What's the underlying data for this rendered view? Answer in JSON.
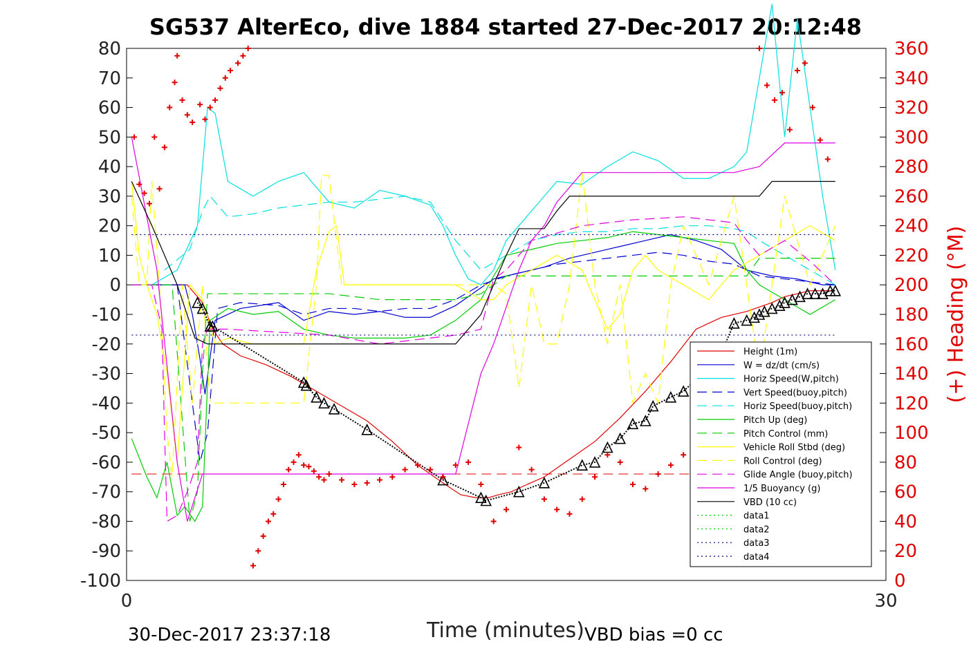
{
  "chart_data": {
    "type": "line",
    "title": "SG537 AlterEco, dive 1884 started 27-Dec-2017 20:12:48",
    "xlabel": "Time (minutes)",
    "ylabel_right": "(+) Heading (°M)",
    "xlim": [
      0,
      30
    ],
    "ylim": [
      -100,
      80
    ],
    "ylim_right": [
      0,
      360
    ],
    "x_ticks": [
      "0",
      "30"
    ],
    "y_ticks": [
      "80",
      "70",
      "60",
      "50",
      "40",
      "30",
      "20",
      "10",
      "0",
      "-10",
      "-20",
      "-30",
      "-40",
      "-50",
      "-60",
      "-70",
      "-80",
      "-90",
      "-100"
    ],
    "y_ticks_right": [
      "360",
      "340",
      "320",
      "300",
      "280",
      "260",
      "240",
      "220",
      "200",
      "180",
      "160",
      "140",
      "120",
      "100",
      "80",
      "60",
      "40",
      "20",
      "0"
    ],
    "grid": false,
    "legend_position": "lower-right",
    "footer_left": "30-Dec-2017 23:37:18",
    "footer_right": "VBD bias =0 cc",
    "colors": {
      "red": "#e00000",
      "blue": "#0000d0",
      "cyan": "#00e0e0",
      "green": "#00cc00",
      "yellow": "#ffff00",
      "magenta": "#e000e0",
      "black": "#000000",
      "navy": "#000080"
    },
    "series": [
      {
        "name": "Height (1m)",
        "color": "red",
        "dash": "solid",
        "x": [
          0.2,
          1.5,
          2.4,
          3.0,
          3.4,
          3.8,
          4.5,
          5.5,
          6.5,
          7.5,
          8.5,
          9.5,
          10.5,
          11.5,
          12.5,
          13.2,
          13.8,
          14.3,
          14.7,
          15.2,
          15.7,
          16.5,
          17.5,
          18.5,
          19.5,
          20.5,
          21.5,
          22.5,
          23.5,
          24.5,
          25.5,
          26.0,
          26.5,
          27.0,
          27.5,
          28.0
        ],
        "y": [
          0,
          0,
          0,
          -6,
          -15,
          -20,
          -24,
          -27,
          -31,
          -36,
          -41,
          -46,
          -53,
          -61,
          -67,
          -71,
          -72,
          -72,
          -71,
          -70,
          -68,
          -65,
          -59,
          -53,
          -45,
          -36,
          -26,
          -15,
          -11,
          -9,
          -6,
          -4,
          -3,
          -2,
          -2,
          -2
        ]
      },
      {
        "name": "W = dz/dt (cm/s)",
        "color": "blue",
        "dash": "solid",
        "x": [
          0.2,
          1.5,
          2.3,
          2.6,
          2.9,
          3.1,
          3.5,
          4.5,
          6.0,
          7.0,
          8.0,
          9.0,
          10.0,
          11.0,
          12.0,
          13.0,
          14.0,
          14.5,
          15.5,
          16.5,
          17.5,
          18.5,
          19.5,
          20.5,
          21.5,
          22.5,
          23.5,
          24.5,
          25.5,
          26.5,
          27.5,
          28.0
        ],
        "y": [
          0,
          0,
          0,
          -10,
          -25,
          -37,
          -12,
          -8,
          -6,
          -12,
          -9,
          -10,
          -9,
          -11,
          -11,
          -7,
          -1,
          2,
          4,
          6,
          9,
          11,
          13,
          15,
          17,
          15,
          12,
          5,
          3,
          2,
          0,
          0
        ]
      },
      {
        "name": "Horiz Speed(W,pitch)",
        "color": "cyan",
        "dash": "solid",
        "x": [
          0.2,
          1.0,
          2.0,
          2.8,
          3.2,
          3.5,
          4.0,
          5.0,
          6.0,
          7.0,
          8.0,
          9.0,
          10.0,
          11.0,
          12.0,
          12.5,
          13.0,
          13.5,
          14.0,
          14.5,
          15.0,
          16.0,
          17.0,
          18.0,
          19.0,
          20.0,
          21.0,
          22.0,
          23.0,
          24.0,
          24.5,
          25.0,
          25.5,
          26.0,
          26.5,
          27.0,
          27.5,
          28.0
        ],
        "y": [
          0,
          0,
          5,
          20,
          60,
          58,
          35,
          30,
          35,
          38,
          28,
          26,
          32,
          30,
          27,
          20,
          10,
          2,
          0,
          5,
          15,
          25,
          35,
          34,
          40,
          45,
          42,
          36,
          36,
          40,
          45,
          70,
          95,
          50,
          90,
          60,
          30,
          5
        ]
      },
      {
        "name": "Vert Speed(buoy,pitch)",
        "color": "blue",
        "dash": "dashed",
        "x": [
          0.2,
          1.5,
          2.0,
          2.6,
          2.9,
          3.2,
          3.6,
          4.5,
          6.0,
          7.0,
          8.0,
          9.0,
          10.0,
          11.0,
          12.0,
          13.0,
          14.0,
          15.0,
          16.0,
          17.0,
          18.0,
          19.0,
          20.0,
          21.0,
          22.0,
          23.0,
          24.0,
          25.0,
          26.0,
          27.0,
          28.0
        ],
        "y": [
          0,
          0,
          0,
          -40,
          -60,
          -50,
          -8,
          -6,
          -7,
          -10,
          -8,
          -8,
          -9,
          -8,
          -8,
          -5,
          0,
          3,
          5,
          7,
          8,
          9,
          10,
          11,
          10,
          8,
          7,
          3,
          2,
          1,
          0
        ]
      },
      {
        "name": "Horiz Speed(buoy,pitch)",
        "color": "cyan",
        "dash": "dashed",
        "x": [
          1.5,
          2.5,
          3.0,
          3.3,
          4.0,
          5.0,
          6.0,
          7.0,
          8.0,
          9.0,
          10.0,
          11.0,
          12.0,
          13.0,
          14.0,
          15.0,
          16.0,
          17.0,
          18.0,
          19.0,
          20.0,
          21.0,
          22.0,
          23.0,
          24.0,
          24.5,
          25.0,
          26.0,
          27.0,
          28.0
        ],
        "y": [
          5,
          12,
          25,
          30,
          23,
          24,
          26,
          27,
          28,
          28,
          29,
          30,
          28,
          15,
          5,
          10,
          15,
          17,
          18,
          18,
          19,
          19,
          20,
          20,
          19,
          18,
          15,
          10,
          5,
          0
        ]
      },
      {
        "name": "Pitch Up (deg)",
        "color": "green",
        "dash": "solid",
        "x": [
          0.2,
          0.8,
          1.2,
          1.6,
          2.0,
          2.3,
          2.7,
          3.0,
          3.3,
          4.0,
          5.0,
          6.0,
          7.0,
          8.0,
          9.0,
          10.0,
          11.0,
          12.0,
          13.0,
          14.0,
          14.5,
          15.0,
          16.0,
          17.0,
          18.0,
          19.0,
          20.0,
          21.0,
          22.0,
          23.0,
          24.0,
          24.5,
          25.0,
          26.0,
          27.0,
          28.0
        ],
        "y": [
          -52,
          -65,
          -72,
          -60,
          -78,
          -75,
          -80,
          -75,
          -12,
          -8,
          -10,
          -9,
          -15,
          -17,
          -18,
          -18,
          -18,
          -17,
          -12,
          -5,
          3,
          10,
          12,
          14,
          15,
          16,
          18,
          17,
          16,
          15,
          14,
          5,
          0,
          -5,
          -10,
          -5
        ]
      },
      {
        "name": "Pitch Control (mm)",
        "color": "green",
        "dash": "dashed",
        "x": [
          0.2,
          1.0,
          1.8,
          2.5,
          2.8,
          3.0,
          3.2,
          4.0,
          6.0,
          8.0,
          10.0,
          12.0,
          13.0,
          14.0,
          14.5,
          15.0,
          17.0,
          19.0,
          21.0,
          23.0,
          24.5,
          25.0,
          28.0
        ],
        "y": [
          0,
          0,
          0,
          -80,
          -70,
          -30,
          -3,
          -3,
          -3,
          -3,
          -5,
          -5,
          -5,
          -3,
          0,
          3,
          3,
          3,
          3,
          3,
          3,
          9,
          9
        ]
      },
      {
        "name": "Vehicle Roll Stbd (deg)",
        "color": "yellow",
        "dash": "solid",
        "x": [
          0.2,
          0.5,
          0.8,
          1.2,
          1.6,
          2.0,
          2.5,
          3.0,
          3.5,
          4.0,
          5.0,
          6.0,
          7.0,
          7.5,
          8.0,
          8.3,
          8.6,
          9.0,
          10.0,
          11.0,
          12.0,
          13.0,
          14.0,
          14.5,
          15.0,
          16.0,
          17.0,
          18.0,
          19.0,
          19.5,
          20.0,
          20.5,
          21.0,
          22.0,
          23.0,
          24.0,
          25.0,
          26.0,
          27.0,
          28.0
        ],
        "y": [
          35,
          10,
          0,
          -10,
          -30,
          -60,
          0,
          -5,
          -20,
          -18,
          -20,
          -20,
          -20,
          5,
          18,
          20,
          0,
          0,
          0,
          0,
          0,
          0,
          -5,
          -5,
          0,
          5,
          10,
          5,
          -15,
          -10,
          5,
          10,
          5,
          0,
          -5,
          5,
          10,
          15,
          20,
          15
        ]
      },
      {
        "name": "Roll Control (deg)",
        "color": "yellow",
        "dash": "dashed",
        "x": [
          0.2,
          0.5,
          0.8,
          1.0,
          1.3,
          1.6,
          1.8,
          2.2,
          2.6,
          3.0,
          3.3,
          4.0,
          6.0,
          7.0,
          7.5,
          7.7,
          8.0,
          8.5,
          9.0,
          10.0,
          12.0,
          14.0,
          14.5,
          15.0,
          15.5,
          16.0,
          16.5,
          17.0,
          17.5,
          18.0,
          18.5,
          19.0,
          19.5,
          20.0,
          20.5,
          21.0,
          21.5,
          22.0,
          23.0,
          24.0,
          25.0,
          26.0,
          27.0,
          28.0
        ],
        "y": [
          30,
          0,
          0,
          35,
          0,
          -50,
          -65,
          0,
          -40,
          0,
          -40,
          -40,
          -40,
          -40,
          0,
          37,
          37,
          0,
          0,
          0,
          0,
          0,
          0,
          -3,
          -35,
          0,
          -20,
          -20,
          0,
          38,
          0,
          -20,
          0,
          -40,
          -30,
          -40,
          0,
          20,
          0,
          30,
          -30,
          30,
          0,
          20
        ]
      },
      {
        "name": "Glide Angle (buoy,pitch)",
        "color": "magenta",
        "dash": "dashed",
        "x": [
          0.2,
          1.0,
          1.4,
          1.5,
          1.6,
          2.0,
          2.4,
          2.8,
          3.0,
          3.2,
          4.0,
          6.0,
          8.0,
          10.0,
          12.0,
          13.0,
          14.0,
          14.5,
          15.0,
          16.0,
          18.0,
          20.0,
          22.0,
          23.0,
          24.0,
          24.5,
          25.0,
          26.0,
          27.0,
          28.0
        ],
        "y": [
          0,
          0,
          -15,
          -50,
          -80,
          -78,
          -70,
          -60,
          -20,
          -15,
          -15,
          -16,
          -17,
          -20,
          -18,
          -17,
          -15,
          2,
          5,
          15,
          20,
          22,
          23,
          22,
          21,
          15,
          10,
          15,
          8,
          0
        ]
      },
      {
        "name": "1/5 Buoyancy (g)",
        "color": "magenta",
        "dash": "solid",
        "x": [
          0.2,
          1.2,
          2.0,
          2.4,
          3.0,
          4.0,
          8.0,
          12.0,
          13.0,
          14.0,
          14.5,
          15.5,
          16.0,
          16.5,
          17.0,
          18.0,
          22.0,
          23.0,
          24.0,
          25.0,
          26.0,
          27.0,
          28.0
        ],
        "y": [
          50,
          5,
          -60,
          -80,
          -64,
          -64,
          -64,
          -64,
          -64,
          -30,
          -20,
          5,
          15,
          20,
          28,
          38,
          38,
          38,
          38,
          40,
          48,
          48,
          48
        ]
      },
      {
        "name": "VBD (10 cc)",
        "color": "black",
        "dash": "solid",
        "x": [
          0.2,
          1.0,
          2.0,
          2.7,
          3.2,
          4.0,
          8.0,
          10.0,
          12.0,
          13.0,
          14.0,
          14.5,
          15.0,
          15.5,
          16.0,
          16.5,
          17.0,
          17.5,
          18.0,
          22.0,
          24.0,
          25.0,
          25.5,
          26.0,
          28.0
        ],
        "y": [
          35,
          20,
          0,
          -18,
          -20,
          -20,
          -20,
          -20,
          -20,
          -20,
          -10,
          0,
          10,
          19,
          19,
          19,
          25,
          30,
          30,
          30,
          30,
          30,
          35,
          35,
          35
        ]
      },
      {
        "name": "data1",
        "color": "green",
        "dash": "dotted",
        "x": [],
        "y": []
      },
      {
        "name": "data2",
        "color": "green",
        "dash": "dotted",
        "x": [],
        "y": []
      },
      {
        "name": "data3",
        "color": "navy",
        "dash": "dotted",
        "x": [
          0.2,
          28.0
        ],
        "y": [
          17,
          17
        ]
      },
      {
        "name": "data4",
        "color": "navy",
        "dash": "dotted",
        "x": [
          0.2,
          28.0
        ],
        "y": [
          -17,
          -17
        ]
      }
    ],
    "reference_line": {
      "color": "red",
      "dash": "dashed",
      "x": [
        0.2,
        28.0
      ],
      "y": [
        -64,
        -64
      ]
    },
    "markers": {
      "color": "black",
      "x": [
        2.8,
        3.0,
        3.3,
        3.4,
        7.0,
        7.1,
        7.5,
        7.8,
        8.2,
        9.5,
        12.5,
        14.0,
        14.2,
        15.5,
        16.5,
        18.0,
        18.5,
        19.0,
        19.5,
        20.0,
        20.5,
        20.8,
        21.5,
        22.0,
        22.5,
        23.0,
        23.3,
        24.0,
        24.5,
        24.8,
        25.0,
        25.2,
        25.5,
        25.8,
        26.0,
        26.3,
        26.6,
        26.9,
        27.2,
        27.5,
        27.8,
        28.0
      ],
      "y": [
        -6,
        -8,
        -14,
        -14,
        -33,
        -34,
        -38,
        -40,
        -42,
        -49,
        -66,
        -72,
        -73,
        -70,
        -67,
        -61,
        -60,
        -55,
        -52,
        -47,
        -46,
        -41,
        -38,
        -36,
        -32,
        -30,
        -27,
        -13,
        -12,
        -11,
        -10,
        -9,
        -8,
        -7,
        -6,
        -5,
        -4,
        -3,
        -3,
        -3,
        -2,
        -2
      ]
    },
    "heading_right_axis": {
      "name": "(+) Heading (°M)",
      "color": "red",
      "x": [
        0.3,
        0.5,
        0.7,
        0.9,
        1.1,
        1.3,
        1.5,
        1.7,
        1.9,
        2.0,
        2.2,
        2.4,
        2.6,
        2.9,
        3.1,
        3.3,
        3.5,
        3.7,
        3.9,
        4.1,
        4.4,
        4.6,
        4.8,
        5.0,
        5.2,
        5.4,
        5.6,
        5.8,
        6.0,
        6.2,
        6.4,
        6.6,
        6.8,
        7.0,
        7.2,
        7.4,
        7.6,
        7.8,
        8.0,
        8.5,
        9.0,
        9.5,
        10.0,
        10.5,
        11.0,
        11.5,
        12.0,
        12.5,
        13.0,
        13.5,
        14.0,
        14.5,
        15.0,
        15.5,
        16.0,
        16.5,
        17.0,
        17.5,
        18.0,
        18.5,
        19.0,
        19.5,
        20.0,
        20.5,
        21.0,
        21.5,
        22.0,
        22.5,
        23.0,
        23.5,
        24.0,
        24.5,
        25.0,
        25.3,
        25.6,
        25.9,
        26.2,
        26.5,
        26.8,
        27.1,
        27.4,
        27.7
      ],
      "y": [
        300,
        268,
        262,
        255,
        300,
        265,
        293,
        320,
        337,
        355,
        325,
        315,
        310,
        322,
        312,
        320,
        325,
        333,
        340,
        345,
        350,
        355,
        360,
        10,
        20,
        30,
        40,
        45,
        55,
        65,
        75,
        80,
        85,
        78,
        77,
        74,
        70,
        68,
        72,
        68,
        65,
        66,
        68,
        70,
        75,
        78,
        75,
        70,
        78,
        80,
        65,
        40,
        48,
        90,
        75,
        55,
        48,
        45,
        55,
        70,
        85,
        80,
        65,
        62,
        72,
        78,
        85,
        70,
        52,
        48,
        45,
        60,
        360,
        335,
        325,
        330,
        305,
        345,
        350,
        320,
        298,
        285
      ]
    }
  }
}
